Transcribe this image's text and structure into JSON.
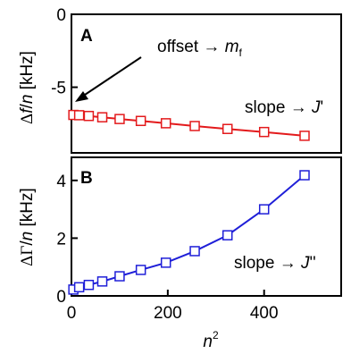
{
  "chart_data": [
    {
      "panel_label": "A",
      "type": "line",
      "xlabel": "",
      "ylabel_parts": {
        "delta": "Δ",
        "var": "f",
        "sep": "/",
        "n": "n",
        "unit": " [kHz]"
      },
      "xlim": [
        0,
        560
      ],
      "ylim": [
        -9.5,
        0
      ],
      "yticks": [
        0,
        -5
      ],
      "ytick_labels": [
        "0",
        "-5"
      ],
      "series": [
        {
          "color": "#e31a1c",
          "marker": "square-open",
          "x": [
            4,
            16,
            36,
            64,
            100,
            144,
            196,
            256,
            324,
            400,
            484
          ],
          "y": [
            -6.9,
            -6.92,
            -6.97,
            -7.06,
            -7.18,
            -7.31,
            -7.47,
            -7.66,
            -7.86,
            -8.07,
            -8.33
          ]
        }
      ],
      "annotations": [
        {
          "kind": "arrow-label",
          "text": "offset → ",
          "italic": "m",
          "sub": "f"
        },
        {
          "kind": "label",
          "text": "slope → ",
          "italic": "J",
          "suffix": "'"
        }
      ]
    },
    {
      "panel_label": "B",
      "type": "line",
      "xlabel_parts": {
        "base": "n",
        "sup": "2"
      },
      "ylabel_parts": {
        "delta": "ΔΓ",
        "var": "",
        "sep": "/",
        "n": "n",
        "unit": " [kHz]"
      },
      "xlim": [
        0,
        560
      ],
      "ylim": [
        0,
        4.8
      ],
      "xticks": [
        0,
        200,
        400
      ],
      "xtick_labels": [
        "0",
        "200",
        "400"
      ],
      "yticks": [
        0,
        2,
        4
      ],
      "ytick_labels": [
        "0",
        "2",
        "4"
      ],
      "series": [
        {
          "color": "#1f1fd8",
          "marker": "square-open",
          "x": [
            4,
            16,
            36,
            64,
            100,
            144,
            196,
            256,
            324,
            400,
            484
          ],
          "y": [
            0.22,
            0.3,
            0.38,
            0.5,
            0.68,
            0.9,
            1.15,
            1.55,
            2.1,
            3.0,
            4.18
          ]
        }
      ],
      "annotations": [
        {
          "kind": "label",
          "text": "slope → ",
          "italic": "J",
          "suffix": "''"
        }
      ]
    }
  ]
}
